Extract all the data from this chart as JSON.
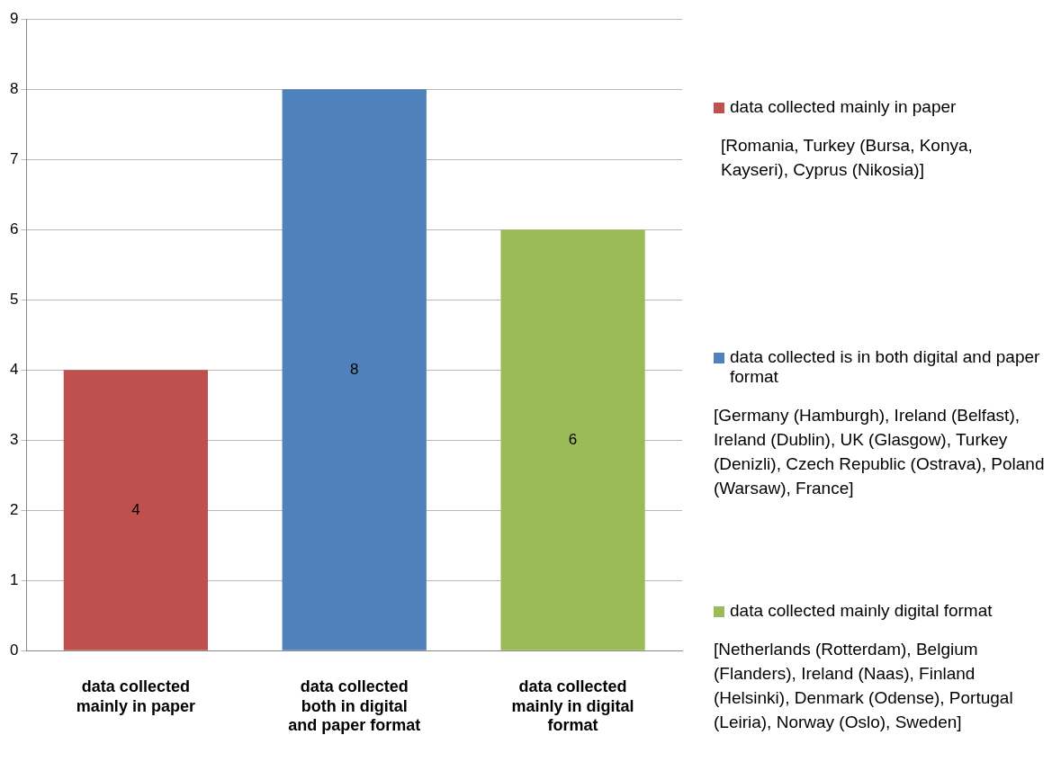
{
  "chart_data": {
    "type": "bar",
    "categories": [
      "data collected mainly in paper",
      "data collected both in digital and paper format",
      "data collected mainly in digital format"
    ],
    "series": [
      {
        "name": "data collected mainly in paper",
        "color": "#c0504d",
        "values": [
          4,
          null,
          null
        ]
      },
      {
        "name": "data collected is in both digital and paper format",
        "color": "#4f81bd",
        "values": [
          null,
          8,
          null
        ]
      },
      {
        "name": "data collected mainly digital format",
        "color": "#9bbb59",
        "values": [
          null,
          null,
          6
        ]
      }
    ],
    "ylim": [
      0,
      9
    ],
    "yticks": [
      0,
      1,
      2,
      3,
      4,
      5,
      6,
      7,
      8,
      9
    ],
    "grid": "y",
    "legend": "right",
    "data_labels": true,
    "annotations": [
      "[Romania, Turkey (Bursa, Konya, Kayseri), Cyprus (Nikosia)]",
      "[Germany (Hamburgh), Ireland (Belfast), Ireland (Dublin), UK (Glasgow), Turkey (Denizli), Czech Republic (Ostrava), Poland (Warsaw), France]",
      "[Netherlands (Rotterdam), Belgium (Flanders), Ireland (Naas), Finland (Helsinki), Denmark (Odense), Portugal (Leiria), Norway (Oslo), Sweden]"
    ]
  }
}
